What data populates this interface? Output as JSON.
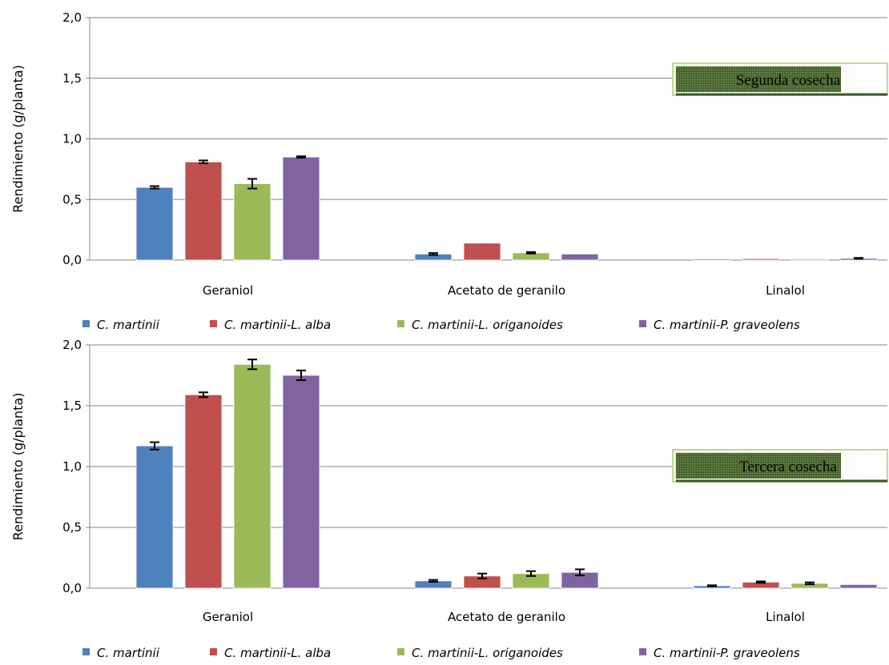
{
  "chart_data": [
    {
      "type": "bar",
      "ylabel": "Rendimiento (g/planta)",
      "ylim": [
        0,
        2
      ],
      "yticks": [
        "0,0",
        "0,5",
        "1,0",
        "1,5",
        "2,0"
      ],
      "categories": [
        "Geraniol",
        "Acetato de geranilo",
        "Linalol"
      ],
      "annotation": "Segunda cosecha",
      "grid": true,
      "legend": "bottom",
      "series": [
        {
          "name": "C. martinii",
          "color": "#4f81bd",
          "values": [
            0.6,
            0.05,
            0.003
          ],
          "errors": [
            0.01,
            0.008,
            0.0
          ]
        },
        {
          "name": "C. martinii-L. alba",
          "color": "#c0504d",
          "values": [
            0.81,
            0.14,
            0.012
          ],
          "errors": [
            0.012,
            0.0,
            0.0
          ]
        },
        {
          "name": "C. martinii-L. origanoides",
          "color": "#9bbb59",
          "values": [
            0.63,
            0.06,
            0.003
          ],
          "errors": [
            0.04,
            0.006,
            0.0
          ]
        },
        {
          "name": "C. martinii-P. graveolens",
          "color": "#8064a2",
          "values": [
            0.85,
            0.05,
            0.014
          ],
          "errors": [
            0.006,
            0.0,
            0.004
          ]
        }
      ]
    },
    {
      "type": "bar",
      "ylabel": "Rendimiento (g/planta)",
      "ylim": [
        0,
        2
      ],
      "yticks": [
        "0,0",
        "0,5",
        "1,0",
        "1,5",
        "2,0"
      ],
      "categories": [
        "Geraniol",
        "Acetato de geranilo",
        "Linalol"
      ],
      "annotation": "Tercera cosecha",
      "grid": true,
      "legend": "bottom",
      "series": [
        {
          "name": "C. martinii",
          "color": "#4f81bd",
          "values": [
            1.17,
            0.06,
            0.02
          ],
          "errors": [
            0.03,
            0.008,
            0.004
          ]
        },
        {
          "name": "C. martinii-L. alba",
          "color": "#c0504d",
          "values": [
            1.59,
            0.1,
            0.05
          ],
          "errors": [
            0.02,
            0.02,
            0.006
          ]
        },
        {
          "name": "C. martinii-L. origanoides",
          "color": "#9bbb59",
          "values": [
            1.84,
            0.12,
            0.04
          ],
          "errors": [
            0.04,
            0.02,
            0.008
          ]
        },
        {
          "name": "C. martinii-P. graveolens",
          "color": "#8064a2",
          "values": [
            1.75,
            0.13,
            0.03
          ],
          "errors": [
            0.04,
            0.025,
            0.0
          ]
        }
      ]
    }
  ]
}
